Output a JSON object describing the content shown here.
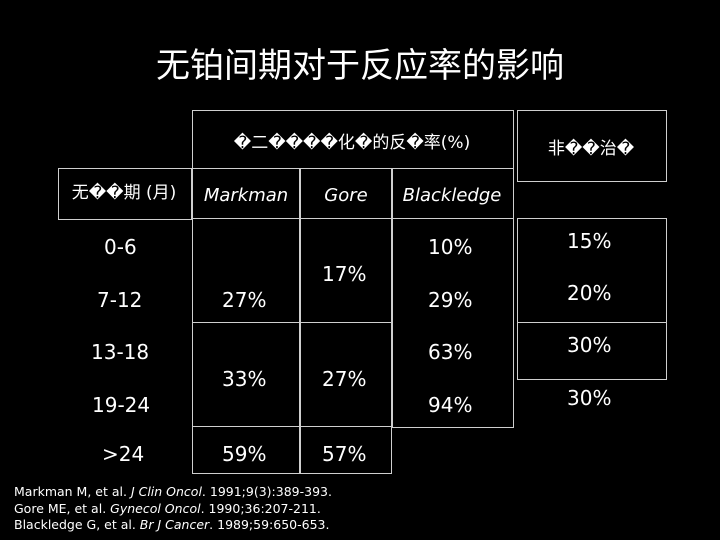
{
  "title": "无铂间期对于反应率的影响",
  "header": {
    "group": "�二����化�的反�率(%)",
    "right": "非��治�",
    "rowhead": "无��期 (月)"
  },
  "columns": [
    "Markman",
    "Gore",
    "Blackledge"
  ],
  "rows": [
    "0-6",
    "7-12",
    "13-18",
    "19-24",
    ">24"
  ],
  "values": {
    "markman": [
      "27%",
      "33%",
      "59%"
    ],
    "gore": [
      "17%",
      "27%",
      "57%"
    ],
    "blackledge": [
      "10%",
      "29%",
      "63%",
      "94%"
    ],
    "non": [
      "15%",
      "20%",
      "30%",
      "30%"
    ]
  },
  "references": [
    {
      "pre": "Markman M, et al. ",
      "journal": "J Clin Oncol",
      "post": ". 1991;9(3):389-393."
    },
    {
      "pre": "Gore ME, et al. ",
      "journal": "Gynecol Oncol",
      "post": ". 1990;36:207-211."
    },
    {
      "pre": "Blackledge G, et al. ",
      "journal": "Br J Cancer",
      "post": ". 1989;59:650-653."
    }
  ]
}
